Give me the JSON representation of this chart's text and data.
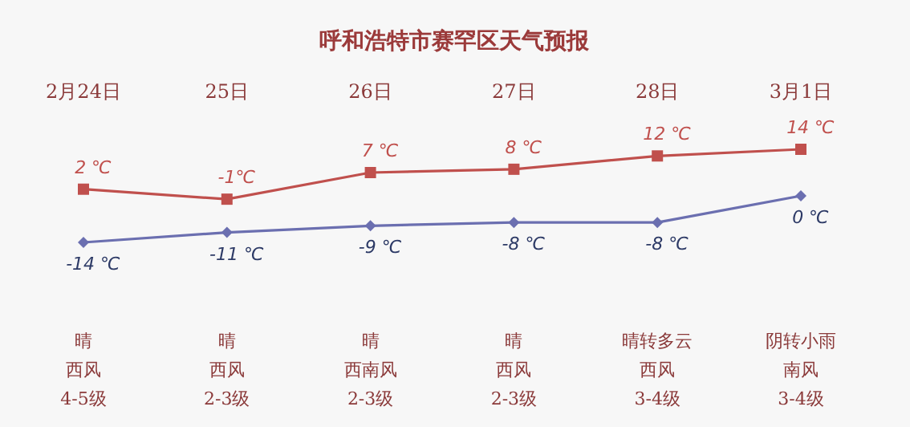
{
  "chart_data": {
    "type": "line",
    "title": "呼和浩特市赛罕区天气预报",
    "categories": [
      "2月24日",
      "25日",
      "26日",
      "27日",
      "28日",
      "3月1日"
    ],
    "series": [
      {
        "color": "#c0504d",
        "marker": "square",
        "values": [
          2,
          -1,
          7,
          8,
          12,
          14
        ],
        "value_labels": [
          "2 ℃",
          "-1℃",
          "7 ℃",
          "8 ℃",
          "12 ℃",
          "14 ℃"
        ]
      },
      {
        "color": "#6b6fb0",
        "marker": "diamond",
        "values": [
          -14,
          -11,
          -9,
          -8,
          -8,
          0
        ],
        "value_labels": [
          "-14 ℃",
          "-11 ℃",
          "-9 ℃",
          "-8 ℃",
          "-8 ℃",
          "0 ℃"
        ]
      }
    ],
    "annotations": [
      "晴",
      "晴",
      "晴",
      "晴",
      "晴转多云",
      "阴转小雨",
      "西风",
      "西风",
      "西南风",
      "西风",
      "西风",
      "南风",
      "4-5级",
      "2-3级",
      "2-3级",
      "2-3级",
      "3-4级",
      "3-4级"
    ],
    "line_style": "solid"
  }
}
